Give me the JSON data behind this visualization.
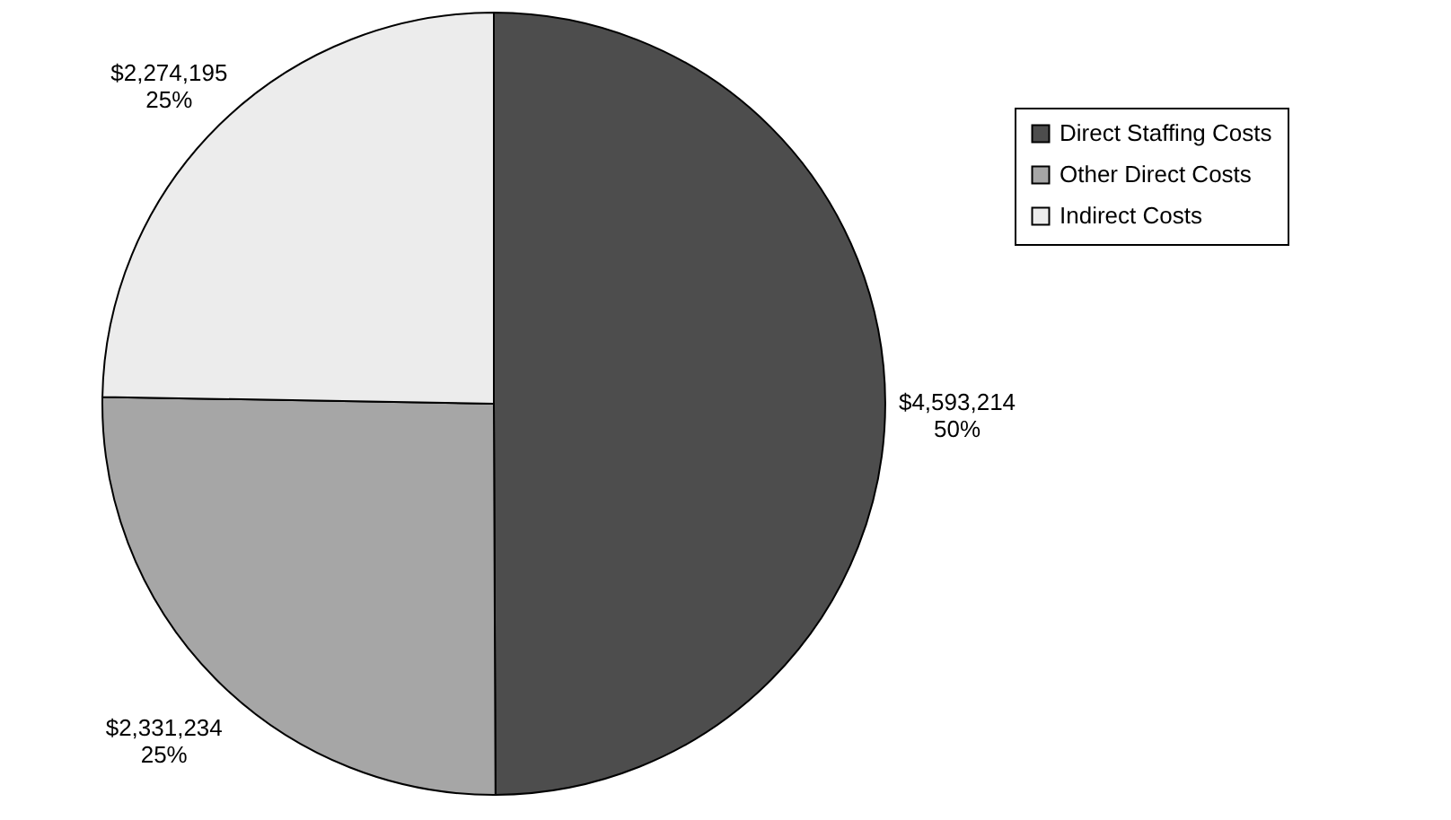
{
  "chart_data": {
    "type": "pie",
    "categories": [
      "Direct Staffing Costs",
      "Other Direct Costs",
      "Indirect Costs"
    ],
    "values": [
      4593214,
      2331234,
      2274195
    ],
    "colors": [
      "#4d4d4d",
      "#a6a6a6",
      "#ececec"
    ],
    "value_labels": [
      "$4,593,214\n50%",
      "$2,331,234\n25%",
      "$2,274,195\n25%"
    ],
    "legend": "right"
  }
}
